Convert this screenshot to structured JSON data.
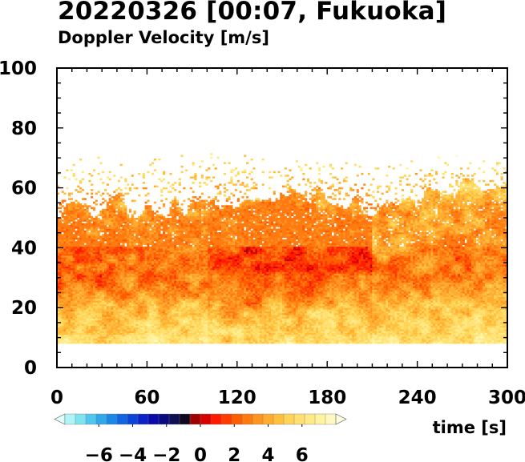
{
  "title": "20220326 [00:07, Fukuoka]",
  "subtitle": "Doppler Velocity [m/s]",
  "chart_data": {
    "type": "heatmap",
    "title": "20220326 [00:07, Fukuoka]",
    "subtitle": "Doppler Velocity [m/s]",
    "xlabel": "time [s]",
    "ylabel": "",
    "xlim": [
      0,
      300
    ],
    "ylim": [
      0,
      100
    ],
    "x_ticks": [
      0,
      60,
      120,
      180,
      240,
      300
    ],
    "y_ticks": [
      0,
      20,
      40,
      60,
      80,
      100
    ],
    "no_data_below_height": 8,
    "colorbar": {
      "range": [
        -8,
        8
      ],
      "ticks": [
        -6,
        -4,
        -2,
        0,
        2,
        4,
        6
      ],
      "tick_labels": [
        "−6",
        "−4",
        "−2",
        "0",
        "2",
        "4",
        "6"
      ],
      "extend": "both",
      "colors": [
        "#e0ffff",
        "#b0f4f8",
        "#80e4f0",
        "#50c8ee",
        "#30a8ea",
        "#1c88e6",
        "#1066e0",
        "#0c44d8",
        "#0a22c8",
        "#0a0aa8",
        "#0a0a80",
        "#101050",
        "#100820",
        "#a00000",
        "#d80000",
        "#ff1a00",
        "#ff3c00",
        "#ff5e00",
        "#ff7a10",
        "#ff9420",
        "#ffac30",
        "#ffc040",
        "#ffd458",
        "#ffe070",
        "#ffea88",
        "#fff2a0",
        "#fff8c0",
        "#fffce0"
      ]
    },
    "height_profile": {
      "heights": [
        8,
        12,
        16,
        20,
        24,
        28,
        32,
        36,
        40,
        44,
        48,
        52,
        56,
        60,
        64,
        68,
        72
      ],
      "mean_velocity_by_segment": [
        {
          "time": [
            0,
            30
          ],
          "values": [
            5.4,
            5.0,
            4.6,
            4.0,
            3.2,
            2.4,
            2.0,
            2.2,
            2.0,
            2.6,
            3.0,
            3.4,
            3.8,
            4.6,
            5.0,
            5.6,
            6.0
          ]
        },
        {
          "time": [
            30,
            60
          ],
          "values": [
            5.0,
            4.6,
            4.2,
            3.8,
            3.2,
            2.8,
            2.6,
            2.6,
            2.4,
            2.6,
            3.0,
            3.2,
            3.6,
            4.2,
            4.8,
            5.4,
            6.0
          ]
        },
        {
          "time": [
            60,
            100
          ],
          "values": [
            5.6,
            5.2,
            4.8,
            4.2,
            3.4,
            2.8,
            2.4,
            2.2,
            2.4,
            2.8,
            3.2,
            3.4,
            3.8,
            4.4,
            4.8,
            5.2,
            6.0
          ]
        },
        {
          "time": [
            100,
            120
          ],
          "values": [
            5.0,
            4.8,
            4.0,
            3.4,
            2.8,
            2.4,
            2.0,
            1.8,
            1.8,
            2.2,
            2.8,
            3.2,
            3.6,
            4.2,
            4.8,
            5.4,
            6.0
          ]
        },
        {
          "time": [
            120,
            170
          ],
          "values": [
            5.6,
            5.0,
            4.4,
            3.6,
            2.8,
            2.2,
            1.8,
            1.4,
            1.4,
            1.6,
            2.0,
            2.6,
            3.2,
            3.8,
            4.6,
            5.2,
            6.0
          ]
        },
        {
          "time": [
            170,
            210
          ],
          "values": [
            5.4,
            5.0,
            4.6,
            4.0,
            3.0,
            2.4,
            1.8,
            1.6,
            1.6,
            2.0,
            2.4,
            3.0,
            3.4,
            4.0,
            4.6,
            5.2,
            6.0
          ]
        },
        {
          "time": [
            210,
            250
          ],
          "values": [
            5.6,
            5.2,
            4.8,
            4.2,
            3.6,
            3.2,
            3.0,
            3.0,
            3.2,
            3.4,
            3.6,
            3.8,
            4.0,
            4.4,
            4.8,
            5.4,
            6.0
          ]
        },
        {
          "time": [
            250,
            300
          ],
          "values": [
            6.0,
            5.6,
            5.0,
            4.4,
            3.6,
            3.0,
            2.6,
            2.4,
            2.6,
            3.0,
            3.4,
            3.6,
            4.0,
            4.4,
            4.8,
            5.4,
            6.0
          ]
        }
      ]
    }
  }
}
